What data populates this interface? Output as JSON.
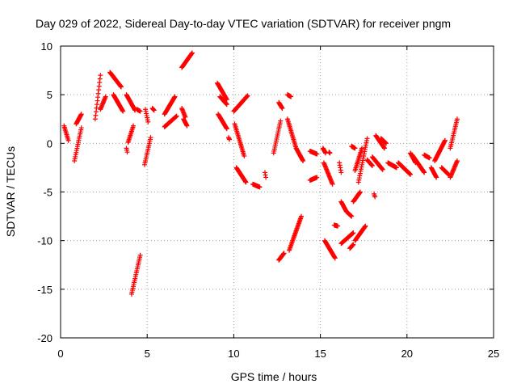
{
  "chart_data": {
    "type": "scatter",
    "title": "Day 029 of 2022, Sidereal Day-to-day VTEC variation (SDTVAR) for receiver pngm",
    "xlabel": "GPS time / hours",
    "ylabel": "SDTVAR / TECUs",
    "xlim": [
      0,
      25
    ],
    "ylim": [
      -20,
      10
    ],
    "xticks": [
      0,
      5,
      10,
      15,
      20,
      25
    ],
    "yticks": [
      -20,
      -15,
      -10,
      -5,
      0,
      5,
      10
    ],
    "xtick_labels": [
      "0",
      "5",
      "10",
      "15",
      "20",
      "25"
    ],
    "ytick_labels": [
      "-20",
      "-15",
      "-10",
      "-5",
      "0",
      "5",
      "10"
    ],
    "grid": true,
    "marker": "+",
    "color": "#ff0000",
    "segments": [
      {
        "x": [
          0.2,
          0.45
        ],
        "y": [
          1.8,
          0.3
        ]
      },
      {
        "x": [
          0.8,
          1.2
        ],
        "y": [
          -1.8,
          1.6
        ]
      },
      {
        "x": [
          0.9,
          1.2
        ],
        "y": [
          2.0,
          3.0
        ]
      },
      {
        "x": [
          2.0,
          2.3
        ],
        "y": [
          2.5,
          7.0
        ]
      },
      {
        "x": [
          2.3,
          2.6
        ],
        "y": [
          3.5,
          4.8
        ]
      },
      {
        "x": [
          2.85,
          3.5
        ],
        "y": [
          7.3,
          5.8
        ]
      },
      {
        "x": [
          3.05,
          3.6
        ],
        "y": [
          5.0,
          3.3
        ]
      },
      {
        "x": [
          3.8,
          4.3
        ],
        "y": [
          5.0,
          3.4
        ]
      },
      {
        "x": [
          3.9,
          4.2
        ],
        "y": [
          0.1,
          1.8
        ]
      },
      {
        "x": [
          3.8,
          3.85
        ],
        "y": [
          -0.5,
          -0.9
        ]
      },
      {
        "x": [
          4.4,
          4.6
        ],
        "y": [
          3.5,
          3.3
        ]
      },
      {
        "x": [
          4.1,
          4.6
        ],
        "y": [
          -15.5,
          -11.5
        ]
      },
      {
        "x": [
          4.9,
          5.05
        ],
        "y": [
          3.5,
          2.2
        ]
      },
      {
        "x": [
          4.85,
          5.2
        ],
        "y": [
          -2.2,
          0.6
        ]
      },
      {
        "x": [
          5.3,
          5.4
        ],
        "y": [
          3.6,
          3.4
        ]
      },
      {
        "x": [
          6.0,
          6.6
        ],
        "y": [
          3.0,
          4.8
        ]
      },
      {
        "x": [
          6.0,
          6.7
        ],
        "y": [
          1.7,
          2.8
        ]
      },
      {
        "x": [
          7.0,
          7.2
        ],
        "y": [
          3.6,
          2.7
        ]
      },
      {
        "x": [
          7.1,
          7.3
        ],
        "y": [
          2.5,
          1.8
        ]
      },
      {
        "x": [
          7.0,
          7.6
        ],
        "y": [
          7.8,
          9.3
        ]
      },
      {
        "x": [
          9.05,
          9.6
        ],
        "y": [
          6.2,
          4.5
        ]
      },
      {
        "x": [
          9.2,
          9.6
        ],
        "y": [
          4.8,
          4.0
        ]
      },
      {
        "x": [
          9.1,
          9.6
        ],
        "y": [
          3.0,
          1.5
        ]
      },
      {
        "x": [
          9.7,
          9.75
        ],
        "y": [
          0.6,
          0.4
        ]
      },
      {
        "x": [
          10.0,
          10.8
        ],
        "y": [
          3.3,
          4.9
        ]
      },
      {
        "x": [
          10.05,
          10.6
        ],
        "y": [
          2.0,
          -1.3
        ]
      },
      {
        "x": [
          10.15,
          10.7
        ],
        "y": [
          -2.5,
          -4.0
        ]
      },
      {
        "x": [
          11.1,
          11.5
        ],
        "y": [
          -4.2,
          -4.5
        ]
      },
      {
        "x": [
          11.8,
          11.85
        ],
        "y": [
          -3.0,
          -3.5
        ]
      },
      {
        "x": [
          12.3,
          12.7
        ],
        "y": [
          -1.0,
          2.3
        ]
      },
      {
        "x": [
          12.6,
          12.8
        ],
        "y": [
          4.2,
          3.6
        ]
      },
      {
        "x": [
          12.6,
          12.9
        ],
        "y": [
          -12.0,
          -11.3
        ]
      },
      {
        "x": [
          13.1,
          13.3
        ],
        "y": [
          5.0,
          4.8
        ]
      },
      {
        "x": [
          13.1,
          13.6
        ],
        "y": [
          2.5,
          -0.5
        ]
      },
      {
        "x": [
          13.6,
          14.0
        ],
        "y": [
          -0.5,
          -1.8
        ]
      },
      {
        "x": [
          13.2,
          13.9
        ],
        "y": [
          -11.0,
          -7.5
        ]
      },
      {
        "x": [
          14.4,
          14.8
        ],
        "y": [
          -0.8,
          -1.1
        ]
      },
      {
        "x": [
          14.4,
          14.8
        ],
        "y": [
          -3.8,
          -3.5
        ]
      },
      {
        "x": [
          15.15,
          15.3
        ],
        "y": [
          -0.5,
          -1.0
        ]
      },
      {
        "x": [
          15.2,
          15.7
        ],
        "y": [
          -2.0,
          -4.2
        ]
      },
      {
        "x": [
          15.5,
          15.55
        ],
        "y": [
          -0.9,
          -1.0
        ]
      },
      {
        "x": [
          15.25,
          15.85
        ],
        "y": [
          -10.0,
          -11.8
        ]
      },
      {
        "x": [
          15.8,
          16.0
        ],
        "y": [
          -8.4,
          -8.5
        ]
      },
      {
        "x": [
          16.1,
          16.2
        ],
        "y": [
          -2.0,
          -3.0
        ]
      },
      {
        "x": [
          16.2,
          16.5
        ],
        "y": [
          -6.0,
          -7.0
        ]
      },
      {
        "x": [
          16.5,
          16.8
        ],
        "y": [
          -7.0,
          -7.5
        ]
      },
      {
        "x": [
          16.2,
          16.9
        ],
        "y": [
          -10.3,
          -9.2
        ]
      },
      {
        "x": [
          16.7,
          16.9
        ],
        "y": [
          -10.8,
          -10.4
        ]
      },
      {
        "x": [
          16.8,
          17.0
        ],
        "y": [
          -0.3,
          -0.5
        ]
      },
      {
        "x": [
          16.9,
          17.3
        ],
        "y": [
          -6.0,
          -5.0
        ]
      },
      {
        "x": [
          17.0,
          17.4
        ],
        "y": [
          -2.8,
          -0.5
        ]
      },
      {
        "x": [
          17.0,
          17.6
        ],
        "y": [
          -10.0,
          -8.5
        ]
      },
      {
        "x": [
          17.2,
          17.7
        ],
        "y": [
          -4.0,
          0.5
        ]
      },
      {
        "x": [
          17.7,
          18.0
        ],
        "y": [
          -1.7,
          -2.3
        ]
      },
      {
        "x": [
          18.0,
          18.6
        ],
        "y": [
          -1.4,
          -2.7
        ]
      },
      {
        "x": [
          18.1,
          18.15
        ],
        "y": [
          -5.2,
          -5.5
        ]
      },
      {
        "x": [
          18.2,
          18.7
        ],
        "y": [
          0.8,
          -0.5
        ]
      },
      {
        "x": [
          18.5,
          18.8
        ],
        "y": [
          0.5,
          0.0
        ]
      },
      {
        "x": [
          18.9,
          19.4
        ],
        "y": [
          -2.0,
          -2.5
        ]
      },
      {
        "x": [
          19.5,
          20.2
        ],
        "y": [
          -2.0,
          -3.2
        ]
      },
      {
        "x": [
          20.2,
          20.5
        ],
        "y": [
          -1.0,
          -2.0
        ]
      },
      {
        "x": [
          20.3,
          21.0
        ],
        "y": [
          -1.2,
          -3.0
        ]
      },
      {
        "x": [
          21.0,
          21.3
        ],
        "y": [
          -1.2,
          -1.5
        ]
      },
      {
        "x": [
          21.4,
          21.7
        ],
        "y": [
          -2.5,
          -3.5
        ]
      },
      {
        "x": [
          21.6,
          22.2
        ],
        "y": [
          -1.8,
          0.3
        ]
      },
      {
        "x": [
          22.0,
          22.4
        ],
        "y": [
          -2.5,
          -3.2
        ]
      },
      {
        "x": [
          22.5,
          22.9
        ],
        "y": [
          -3.5,
          -1.8
        ]
      },
      {
        "x": [
          22.5,
          22.9
        ],
        "y": [
          -0.5,
          2.5
        ]
      }
    ]
  }
}
